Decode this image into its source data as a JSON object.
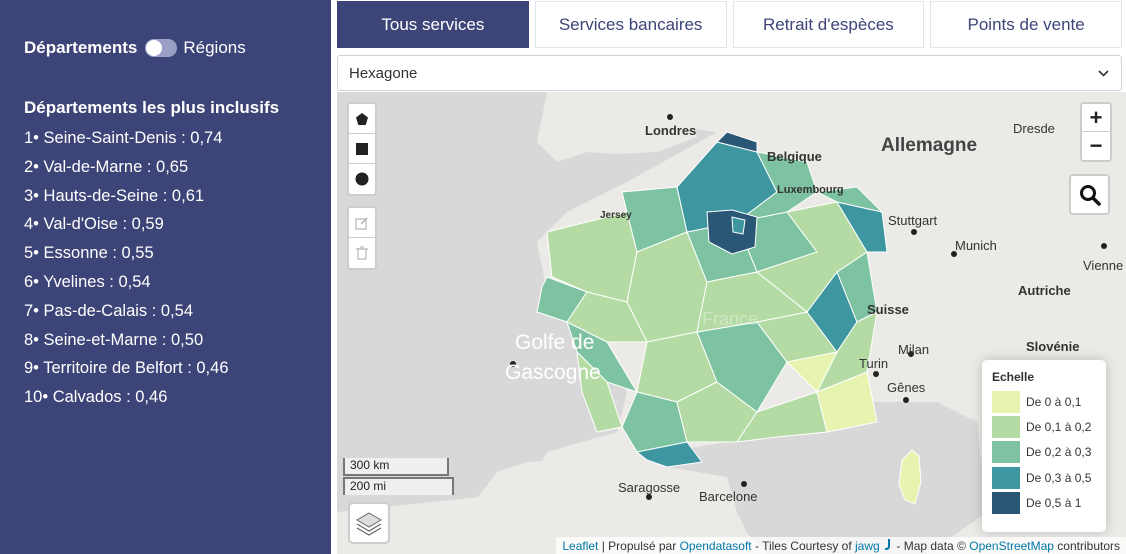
{
  "sidebar": {
    "toggle_left": "Départements",
    "toggle_right": "Régions",
    "heading": "Départements les plus inclusifs",
    "ranking": [
      "1• Seine-Saint-Denis : 0,74",
      "2• Val-de-Marne : 0,65",
      "3• Hauts-de-Seine : 0,61",
      "4• Val-d'Oise : 0,59",
      "5• Essonne : 0,55",
      "6• Yvelines : 0,54",
      "7• Pas-de-Calais : 0,54",
      "8• Seine-et-Marne : 0,50",
      "9• Territoire de Belfort : 0,46",
      "10• Calvados : 0,46"
    ]
  },
  "tabs": [
    "Tous services",
    "Services bancaires",
    "Retrait d'espèces",
    "Points de vente"
  ],
  "active_tab": "Tous services",
  "select": {
    "value": "Hexagone"
  },
  "map": {
    "zoom_in": "+",
    "zoom_out": "−",
    "scale_km": "300 km",
    "scale_mi": "200 mi",
    "places": {
      "londres": "Londres",
      "belgique": "Belgique",
      "luxembourg": "Luxembourg",
      "allemagne": "Allemagne",
      "dresde": "Dresde",
      "jersey": "Jersey",
      "stuttgart": "Stuttgart",
      "munich": "Munich",
      "vienne": "Vienne",
      "autriche": "Autriche",
      "suisse": "Suisse",
      "milan": "Milan",
      "turin": "Turin",
      "genes": "Gênes",
      "slovenie": "Slovénie",
      "golfe1": "Golfe de",
      "golfe2": "Gascogne",
      "saragosse": "Saragosse",
      "barcelone": "Barcelone",
      "france_ghost": "France"
    },
    "legend": {
      "title": "Echelle",
      "items": [
        {
          "label": "De 0 à 0,1",
          "color": "#e6f4b0"
        },
        {
          "label": "De 0,1 à 0,2",
          "color": "#b4dba3"
        },
        {
          "label": "De 0,2 à 0,3",
          "color": "#7ec3a1"
        },
        {
          "label": "De 0,3 à 0,5",
          "color": "#3e96a0"
        },
        {
          "label": "De 0,5 à 1",
          "color": "#2a5776"
        }
      ]
    },
    "attribution": {
      "leaflet": "Leaflet",
      "sep1": " | Propulsé par ",
      "ods": "Opendatasoft",
      "tiles": " - Tiles Courtesy of ",
      "jawg": "jawg",
      "mapdata": " - Map data © ",
      "osm": "OpenStreetMap",
      "contrib": " contributors"
    }
  }
}
